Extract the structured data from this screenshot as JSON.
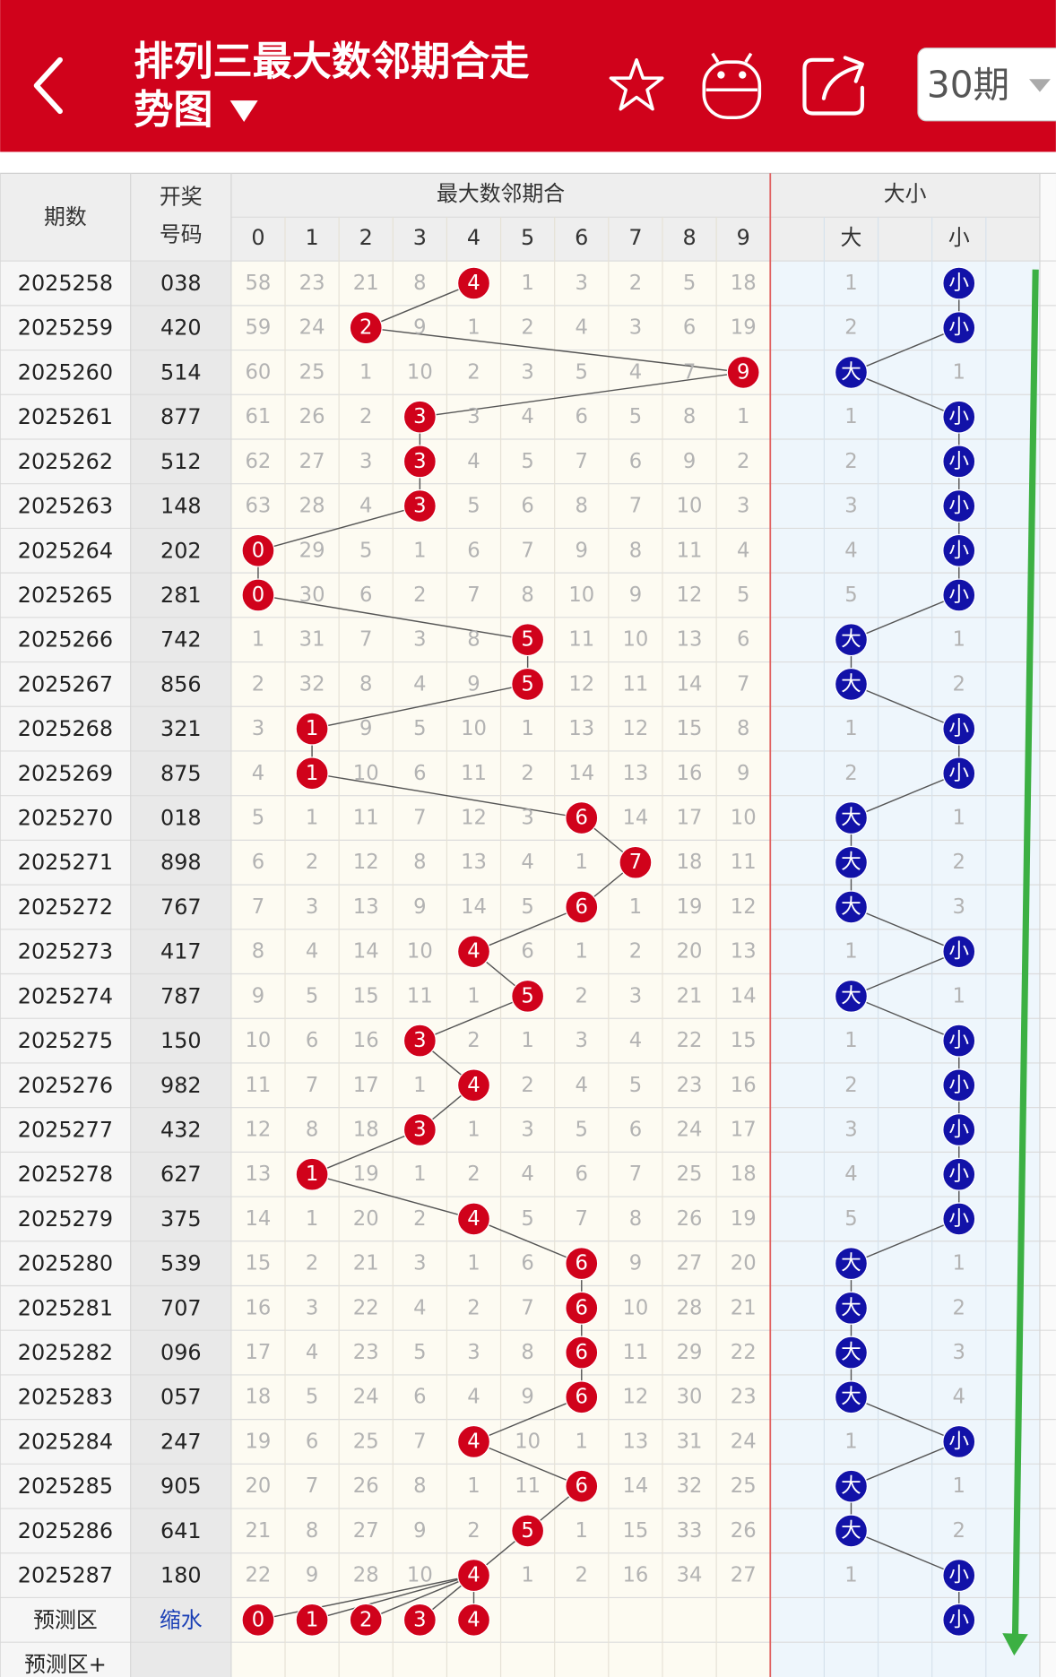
{
  "header": {
    "title": "排列三最大数邻期合走势图",
    "period_select": "30期"
  },
  "table": {
    "headers": {
      "period": "期数",
      "number": [
        "开奖",
        "号码"
      ],
      "digit_group": "最大数邻期合",
      "digits": [
        0,
        1,
        2,
        3,
        4,
        5,
        6,
        7,
        8,
        9
      ],
      "size_group": "大小",
      "sizes": [
        "大",
        "小"
      ]
    },
    "rows": [
      {
        "period": "2025258",
        "number": "038",
        "digit": 4,
        "cells": [
          58,
          23,
          21,
          8,
          null,
          1,
          3,
          2,
          5,
          18
        ],
        "size": "小",
        "size_cells": [
          1,
          null
        ]
      },
      {
        "period": "2025259",
        "number": "420",
        "digit": 2,
        "cells": [
          59,
          24,
          null,
          9,
          1,
          2,
          4,
          3,
          6,
          19
        ],
        "size": "小",
        "size_cells": [
          2,
          null
        ]
      },
      {
        "period": "2025260",
        "number": "514",
        "digit": 9,
        "cells": [
          60,
          25,
          1,
          10,
          2,
          3,
          5,
          4,
          7,
          null
        ],
        "size": "大",
        "size_cells": [
          null,
          1
        ]
      },
      {
        "period": "2025261",
        "number": "877",
        "digit": 3,
        "cells": [
          61,
          26,
          2,
          null,
          3,
          4,
          6,
          5,
          8,
          1
        ],
        "size": "小",
        "size_cells": [
          1,
          null
        ]
      },
      {
        "period": "2025262",
        "number": "512",
        "digit": 3,
        "cells": [
          62,
          27,
          3,
          null,
          4,
          5,
          7,
          6,
          9,
          2
        ],
        "size": "小",
        "size_cells": [
          2,
          null
        ]
      },
      {
        "period": "2025263",
        "number": "148",
        "digit": 3,
        "cells": [
          63,
          28,
          4,
          null,
          5,
          6,
          8,
          7,
          10,
          3
        ],
        "size": "小",
        "size_cells": [
          3,
          null
        ]
      },
      {
        "period": "2025264",
        "number": "202",
        "digit": 0,
        "cells": [
          null,
          29,
          5,
          1,
          6,
          7,
          9,
          8,
          11,
          4
        ],
        "size": "小",
        "size_cells": [
          4,
          null
        ]
      },
      {
        "period": "2025265",
        "number": "281",
        "digit": 0,
        "cells": [
          null,
          30,
          6,
          2,
          7,
          8,
          10,
          9,
          12,
          5
        ],
        "size": "小",
        "size_cells": [
          5,
          null
        ]
      },
      {
        "period": "2025266",
        "number": "742",
        "digit": 5,
        "cells": [
          1,
          31,
          7,
          3,
          8,
          null,
          11,
          10,
          13,
          6
        ],
        "size": "大",
        "size_cells": [
          null,
          1
        ]
      },
      {
        "period": "2025267",
        "number": "856",
        "digit": 5,
        "cells": [
          2,
          32,
          8,
          4,
          9,
          null,
          12,
          11,
          14,
          7
        ],
        "size": "大",
        "size_cells": [
          null,
          2
        ]
      },
      {
        "period": "2025268",
        "number": "321",
        "digit": 1,
        "cells": [
          3,
          null,
          9,
          5,
          10,
          1,
          13,
          12,
          15,
          8
        ],
        "size": "小",
        "size_cells": [
          1,
          null
        ]
      },
      {
        "period": "2025269",
        "number": "875",
        "digit": 1,
        "cells": [
          4,
          null,
          10,
          6,
          11,
          2,
          14,
          13,
          16,
          9
        ],
        "size": "小",
        "size_cells": [
          2,
          null
        ]
      },
      {
        "period": "2025270",
        "number": "018",
        "digit": 6,
        "cells": [
          5,
          1,
          11,
          7,
          12,
          3,
          null,
          14,
          17,
          10
        ],
        "size": "大",
        "size_cells": [
          null,
          1
        ]
      },
      {
        "period": "2025271",
        "number": "898",
        "digit": 7,
        "cells": [
          6,
          2,
          12,
          8,
          13,
          4,
          1,
          null,
          18,
          11
        ],
        "size": "大",
        "size_cells": [
          null,
          2
        ]
      },
      {
        "period": "2025272",
        "number": "767",
        "digit": 6,
        "cells": [
          7,
          3,
          13,
          9,
          14,
          5,
          null,
          1,
          19,
          12
        ],
        "size": "大",
        "size_cells": [
          null,
          3
        ]
      },
      {
        "period": "2025273",
        "number": "417",
        "digit": 4,
        "cells": [
          8,
          4,
          14,
          10,
          null,
          6,
          1,
          2,
          20,
          13
        ],
        "size": "小",
        "size_cells": [
          1,
          null
        ]
      },
      {
        "period": "2025274",
        "number": "787",
        "digit": 5,
        "cells": [
          9,
          5,
          15,
          11,
          1,
          null,
          2,
          3,
          21,
          14
        ],
        "size": "大",
        "size_cells": [
          null,
          1
        ]
      },
      {
        "period": "2025275",
        "number": "150",
        "digit": 3,
        "cells": [
          10,
          6,
          16,
          null,
          2,
          1,
          3,
          4,
          22,
          15
        ],
        "size": "小",
        "size_cells": [
          1,
          null
        ]
      },
      {
        "period": "2025276",
        "number": "982",
        "digit": 4,
        "cells": [
          11,
          7,
          17,
          1,
          null,
          2,
          4,
          5,
          23,
          16
        ],
        "size": "小",
        "size_cells": [
          2,
          null
        ]
      },
      {
        "period": "2025277",
        "number": "432",
        "digit": 3,
        "cells": [
          12,
          8,
          18,
          null,
          1,
          3,
          5,
          6,
          24,
          17
        ],
        "size": "小",
        "size_cells": [
          3,
          null
        ]
      },
      {
        "period": "2025278",
        "number": "627",
        "digit": 1,
        "cells": [
          13,
          null,
          19,
          1,
          2,
          4,
          6,
          7,
          25,
          18
        ],
        "size": "小",
        "size_cells": [
          4,
          null
        ]
      },
      {
        "period": "2025279",
        "number": "375",
        "digit": 4,
        "cells": [
          14,
          1,
          20,
          2,
          null,
          5,
          7,
          8,
          26,
          19
        ],
        "size": "小",
        "size_cells": [
          5,
          null
        ]
      },
      {
        "period": "2025280",
        "number": "539",
        "digit": 6,
        "cells": [
          15,
          2,
          21,
          3,
          1,
          6,
          null,
          9,
          27,
          20
        ],
        "size": "大",
        "size_cells": [
          null,
          1
        ]
      },
      {
        "period": "2025281",
        "number": "707",
        "digit": 6,
        "cells": [
          16,
          3,
          22,
          4,
          2,
          7,
          null,
          10,
          28,
          21
        ],
        "size": "大",
        "size_cells": [
          null,
          2
        ]
      },
      {
        "period": "2025282",
        "number": "096",
        "digit": 6,
        "cells": [
          17,
          4,
          23,
          5,
          3,
          8,
          null,
          11,
          29,
          22
        ],
        "size": "大",
        "size_cells": [
          null,
          3
        ]
      },
      {
        "period": "2025283",
        "number": "057",
        "digit": 6,
        "cells": [
          18,
          5,
          24,
          6,
          4,
          9,
          null,
          12,
          30,
          23
        ],
        "size": "大",
        "size_cells": [
          null,
          4
        ]
      },
      {
        "period": "2025284",
        "number": "247",
        "digit": 4,
        "cells": [
          19,
          6,
          25,
          7,
          null,
          10,
          1,
          13,
          31,
          24
        ],
        "size": "小",
        "size_cells": [
          1,
          null
        ]
      },
      {
        "period": "2025285",
        "number": "905",
        "digit": 6,
        "cells": [
          20,
          7,
          26,
          8,
          1,
          11,
          null,
          14,
          32,
          25
        ],
        "size": "大",
        "size_cells": [
          null,
          1
        ]
      },
      {
        "period": "2025286",
        "number": "641",
        "digit": 5,
        "cells": [
          21,
          8,
          27,
          9,
          2,
          null,
          1,
          15,
          33,
          26
        ],
        "size": "大",
        "size_cells": [
          null,
          2
        ]
      },
      {
        "period": "2025287",
        "number": "180",
        "digit": 4,
        "cells": [
          22,
          9,
          28,
          10,
          null,
          1,
          2,
          16,
          34,
          27
        ],
        "size": "小",
        "size_cells": [
          1,
          null
        ]
      }
    ],
    "predict": {
      "label": "预测区",
      "note": "缩水",
      "digits": [
        0,
        1,
        2,
        3,
        4
      ],
      "size": "小"
    },
    "predict_plus": {
      "label": "预测区+"
    }
  }
}
